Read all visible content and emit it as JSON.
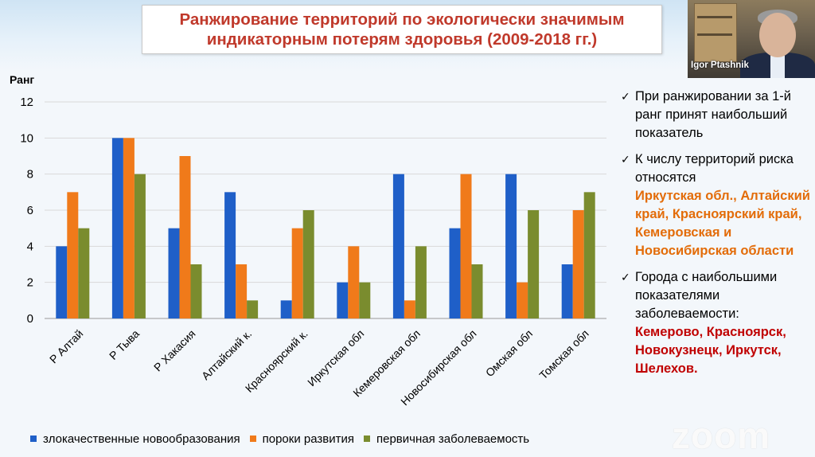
{
  "slide": {
    "title": "Ранжирование территорий по экологически значимым\nиндикаторным потерям здоровья (2009-2018 гг.)"
  },
  "video": {
    "participant_name": "Igor Ptashnik"
  },
  "notes": [
    {
      "check": "✓",
      "text": "При ранжировании за 1-й ранг принят наибольший показатель",
      "highlight": "",
      "highlight_color": ""
    },
    {
      "check": "✓",
      "text": "К числу территорий риска относятся",
      "highlight": "Иркутская обл., Алтайский край, Красноярский край, Кемеровская и Новосибирская области",
      "highlight_color": "#e36c09"
    },
    {
      "check": "✓",
      "text": "Города с наибольшими показателями заболеваемости:",
      "highlight": "Кемерово, Красноярск, Новокузнецк, Иркутск, Шелехов.",
      "highlight_color": "#c00000"
    }
  ],
  "zoom_watermark": "zoom",
  "chart_data": {
    "type": "bar",
    "ylabel": "Ранг",
    "ylim": [
      0,
      12
    ],
    "yticks": [
      0,
      2,
      4,
      6,
      8,
      10,
      12
    ],
    "grid": true,
    "legend_position": "bottom",
    "categories": [
      "Р Алтай",
      "Р Тыва",
      "Р Хакасия",
      "Алтайский к.",
      "Красноярский к.",
      "Иркутская обл",
      "Кемеровская обл",
      "Новосибирская обл",
      "Омская обл",
      "Томская обл"
    ],
    "series": [
      {
        "name": "злокачественные новообразования",
        "color": "#1f5fc8",
        "values": [
          4,
          10,
          5,
          7,
          1,
          2,
          8,
          5,
          8,
          3
        ]
      },
      {
        "name": "пороки развития",
        "color": "#f07a1a",
        "values": [
          7,
          10,
          9,
          3,
          5,
          4,
          1,
          8,
          2,
          6
        ]
      },
      {
        "name": "первичная заболеваемость",
        "color": "#7a8c2e",
        "values": [
          5,
          8,
          3,
          1,
          6,
          2,
          4,
          3,
          6,
          7
        ]
      }
    ]
  }
}
